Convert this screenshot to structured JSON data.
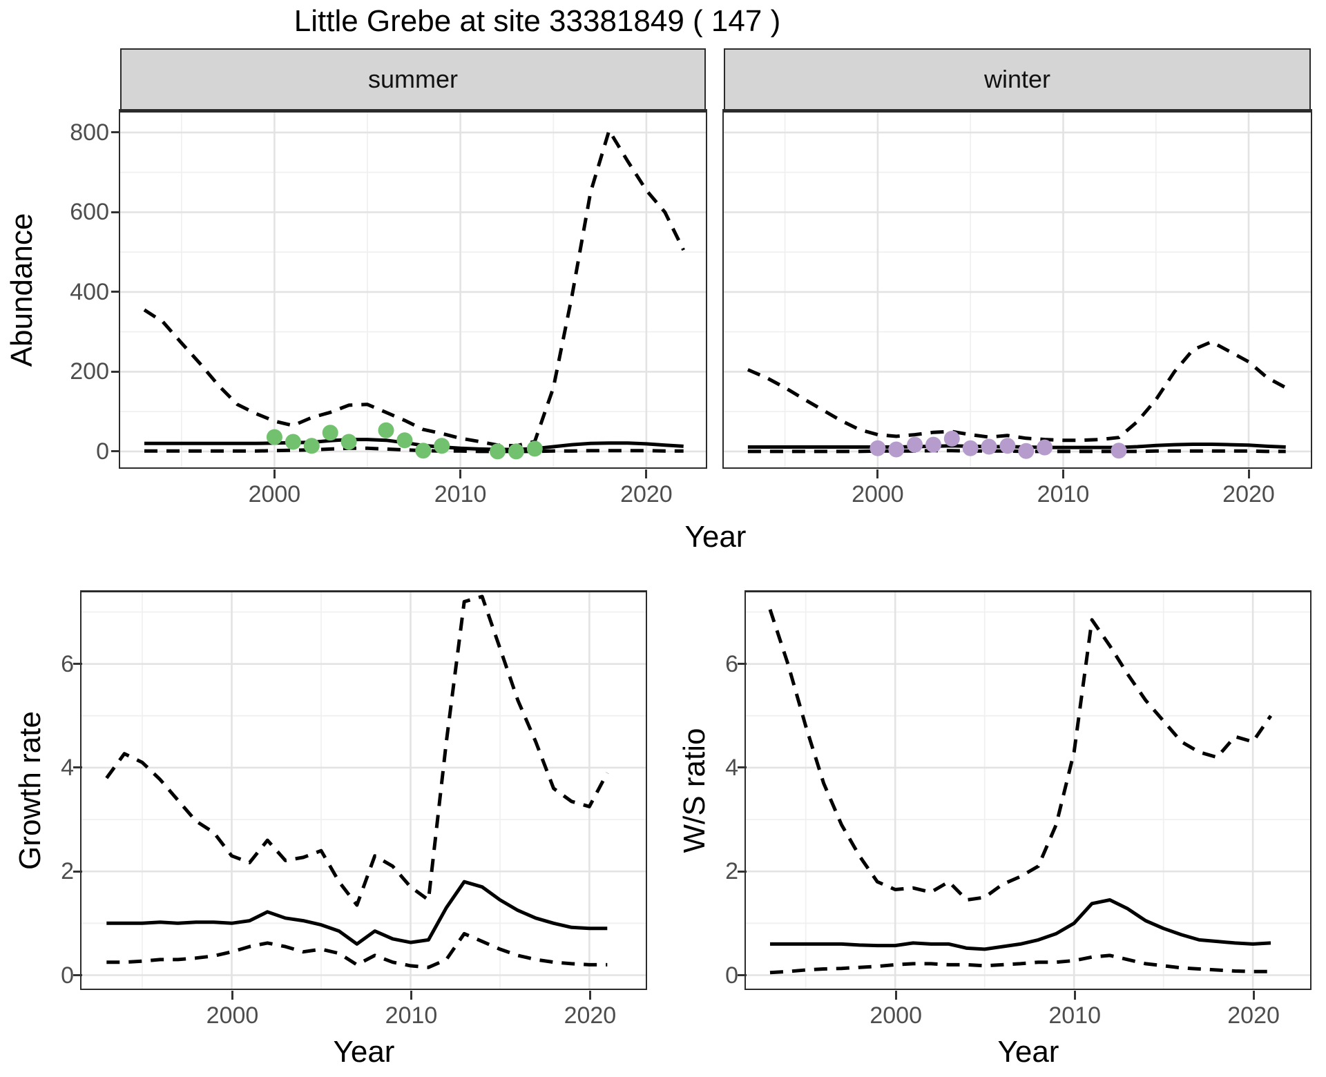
{
  "chart_data": {
    "type": "line",
    "title": "Little Grebe at site 33381849 ( 147 )",
    "facets": [
      "summer",
      "winter"
    ],
    "legend": "none",
    "grid": "on",
    "line_color": "#000000",
    "panels": {
      "summer": {
        "facet_label": "summer",
        "xlabel": "Year",
        "ylabel": "Abundance",
        "x_domain": [
          1991.7,
          2023.2
        ],
        "y_domain": [
          -40,
          850
        ],
        "x_major": [
          2000,
          2010,
          2020
        ],
        "x_minor": [
          1995,
          2005,
          2015
        ],
        "y_major": [
          0,
          200,
          400,
          600,
          800
        ],
        "y_minor": [
          100,
          300,
          500,
          700
        ],
        "years": [
          1993,
          1994,
          1995,
          1996,
          1997,
          1998,
          1999,
          2000,
          2001,
          2002,
          2003,
          2004,
          2005,
          2006,
          2007,
          2008,
          2009,
          2010,
          2011,
          2012,
          2013,
          2014,
          2015,
          2016,
          2017,
          2018,
          2019,
          2020,
          2021,
          2022
        ],
        "series": [
          {
            "name": "upper_ci",
            "style": "dashed",
            "values": [
              355,
              325,
              272,
              220,
              165,
              118,
              95,
              76,
              65,
              85,
              98,
              116,
              118,
              98,
              78,
              55,
              45,
              33,
              25,
              16,
              14,
              25,
              160,
              390,
              650,
              805,
              728,
              655,
              600,
              505
            ]
          },
          {
            "name": "estimate",
            "style": "solid",
            "values": [
              20,
              20,
              20,
              20,
              20,
              20,
              20,
              21,
              22,
              23,
              27,
              30,
              30,
              28,
              22,
              15,
              11,
              8,
              6,
              5,
              5,
              7,
              12,
              17,
              20,
              21,
              21,
              19,
              16,
              13
            ]
          },
          {
            "name": "lower_ci",
            "style": "dashed",
            "values": [
              1,
              1,
              1,
              1,
              1,
              1,
              1,
              2,
              3,
              4,
              6,
              8,
              8,
              6,
              4,
              2,
              1,
              1,
              0,
              0,
              0,
              0,
              1,
              1,
              2,
              2,
              2,
              2,
              1,
              1
            ]
          }
        ],
        "observations": {
          "color": "#72c16e",
          "years": [
            2000,
            2001,
            2002,
            2003,
            2004,
            2006,
            2007,
            2008,
            2009,
            2012,
            2013,
            2014
          ],
          "values": [
            36,
            24,
            14,
            47,
            24,
            53,
            28,
            2,
            14,
            0,
            0,
            7
          ]
        }
      },
      "winter": {
        "facet_label": "winter",
        "xlabel": "Year",
        "ylabel": "Abundance",
        "x_domain": [
          1991.7,
          2023.35
        ],
        "y_domain": [
          -40,
          850
        ],
        "x_major": [
          2000,
          2010,
          2020
        ],
        "x_minor": [
          1995,
          2005,
          2015
        ],
        "y_major": [
          0,
          200,
          400,
          600,
          800
        ],
        "y_minor": [
          100,
          300,
          500,
          700
        ],
        "years": [
          1993,
          1994,
          1995,
          1996,
          1997,
          1998,
          1999,
          2000,
          2001,
          2002,
          2003,
          2004,
          2005,
          2006,
          2007,
          2008,
          2009,
          2010,
          2011,
          2012,
          2013,
          2014,
          2015,
          2016,
          2017,
          2018,
          2019,
          2020,
          2021,
          2022
        ],
        "series": [
          {
            "name": "upper_ci",
            "style": "dashed",
            "values": [
              205,
              185,
              160,
              132,
              105,
              78,
              55,
              42,
              38,
              42,
              48,
              50,
              42,
              36,
              40,
              33,
              30,
              28,
              28,
              30,
              35,
              75,
              130,
              200,
              255,
              275,
              250,
              225,
              185,
              160
            ]
          },
          {
            "name": "estimate",
            "style": "solid",
            "values": [
              11,
              11,
              11,
              11,
              11,
              11,
              11,
              11,
              11,
              12,
              13,
              14,
              13,
              12,
              12,
              11,
              10,
              10,
              10,
              10,
              10,
              12,
              15,
              17,
              18,
              18,
              17,
              16,
              13,
              11
            ]
          },
          {
            "name": "lower_ci",
            "style": "dashed",
            "values": [
              0,
              0,
              0,
              0,
              0,
              0,
              0,
              1,
              1,
              1,
              2,
              2,
              1,
              1,
              1,
              0,
              0,
              0,
              0,
              0,
              0,
              0,
              1,
              1,
              1,
              1,
              1,
              1,
              0,
              0
            ]
          }
        ],
        "observations": {
          "color": "#b69ccc",
          "years": [
            2000,
            2001,
            2002,
            2003,
            2004,
            2005,
            2006,
            2007,
            2008,
            2009,
            2013
          ],
          "values": [
            8,
            5,
            17,
            17,
            32,
            8,
            12,
            14,
            1,
            10,
            2
          ]
        }
      },
      "growth_rate": {
        "facet_label": "",
        "xlabel": "Year",
        "ylabel": "Growth rate",
        "x_domain": [
          1991.6,
          2023.15
        ],
        "y_domain": [
          -0.26,
          7.38
        ],
        "x_major": [
          2000,
          2010,
          2020
        ],
        "x_minor": [
          1995,
          2005,
          2015
        ],
        "y_major": [
          0,
          2,
          4,
          6
        ],
        "y_minor": [
          1,
          3,
          5,
          7
        ],
        "years": [
          1993,
          1994,
          1995,
          1996,
          1997,
          1998,
          1999,
          2000,
          2001,
          2002,
          2003,
          2004,
          2005,
          2006,
          2007,
          2008,
          2009,
          2010,
          2011,
          2012,
          2013,
          2014,
          2015,
          2016,
          2017,
          2018,
          2019,
          2020,
          2021
        ],
        "series": [
          {
            "name": "upper_ci",
            "style": "dashed",
            "values": [
              3.8,
              4.27,
              4.1,
              3.77,
              3.37,
              2.97,
              2.75,
              2.3,
              2.17,
              2.6,
              2.21,
              2.27,
              2.4,
              1.8,
              1.35,
              2.3,
              2.1,
              1.7,
              1.45,
              4.5,
              7.2,
              7.3,
              6.3,
              5.3,
              4.5,
              3.6,
              3.35,
              3.25,
              3.9
            ]
          },
          {
            "name": "estimate",
            "style": "solid",
            "values": [
              1.0,
              1.0,
              1.0,
              1.02,
              1.0,
              1.02,
              1.02,
              1.0,
              1.05,
              1.22,
              1.1,
              1.05,
              0.97,
              0.85,
              0.6,
              0.85,
              0.7,
              0.63,
              0.68,
              1.3,
              1.8,
              1.7,
              1.45,
              1.25,
              1.1,
              1.0,
              0.92,
              0.9,
              0.9
            ]
          },
          {
            "name": "lower_ci",
            "style": "dashed",
            "values": [
              0.25,
              0.25,
              0.27,
              0.3,
              0.3,
              0.33,
              0.37,
              0.45,
              0.55,
              0.62,
              0.55,
              0.45,
              0.5,
              0.42,
              0.2,
              0.38,
              0.25,
              0.18,
              0.15,
              0.3,
              0.8,
              0.65,
              0.5,
              0.38,
              0.3,
              0.25,
              0.22,
              0.2,
              0.2
            ]
          }
        ],
        "observations": null
      },
      "ws_ratio": {
        "facet_label": "",
        "xlabel": "Year",
        "ylabel": "W/S ratio",
        "x_domain": [
          1991.65,
          2023.2
        ],
        "y_domain": [
          -0.26,
          7.38
        ],
        "x_major": [
          2000,
          2010,
          2020
        ],
        "x_minor": [
          1995,
          2005,
          2015
        ],
        "y_major": [
          0,
          2,
          4,
          6
        ],
        "y_minor": [
          1,
          3,
          5,
          7
        ],
        "years": [
          1993,
          1994,
          1995,
          1996,
          1997,
          1998,
          1999,
          2000,
          2001,
          2002,
          2003,
          2004,
          2005,
          2006,
          2007,
          2008,
          2009,
          2010,
          2011,
          2012,
          2013,
          2014,
          2015,
          2016,
          2017,
          2018,
          2019,
          2020,
          2021
        ],
        "series": [
          {
            "name": "upper_ci",
            "style": "dashed",
            "values": [
              7.05,
              6.0,
              4.8,
              3.7,
              2.9,
              2.3,
              1.8,
              1.65,
              1.68,
              1.6,
              1.8,
              1.45,
              1.5,
              1.75,
              1.9,
              2.1,
              2.9,
              4.3,
              6.85,
              6.35,
              5.8,
              5.3,
              4.9,
              4.5,
              4.3,
              4.2,
              4.6,
              4.5,
              5.0
            ]
          },
          {
            "name": "estimate",
            "style": "solid",
            "values": [
              0.6,
              0.6,
              0.6,
              0.6,
              0.6,
              0.58,
              0.57,
              0.57,
              0.62,
              0.6,
              0.6,
              0.52,
              0.5,
              0.55,
              0.6,
              0.68,
              0.8,
              1.0,
              1.38,
              1.45,
              1.28,
              1.05,
              0.9,
              0.78,
              0.68,
              0.65,
              0.62,
              0.6,
              0.62
            ]
          },
          {
            "name": "lower_ci",
            "style": "dashed",
            "values": [
              0.05,
              0.07,
              0.1,
              0.12,
              0.13,
              0.15,
              0.17,
              0.2,
              0.22,
              0.22,
              0.2,
              0.2,
              0.18,
              0.2,
              0.22,
              0.25,
              0.25,
              0.28,
              0.35,
              0.38,
              0.3,
              0.22,
              0.18,
              0.14,
              0.12,
              0.1,
              0.08,
              0.07,
              0.07
            ]
          }
        ],
        "observations": null
      }
    }
  },
  "labels": {
    "y_top": "Abundance",
    "x_top": "Year",
    "y_growth": "Growth rate",
    "x_growth": "Year",
    "y_ws": "W/S ratio",
    "x_ws": "Year"
  }
}
